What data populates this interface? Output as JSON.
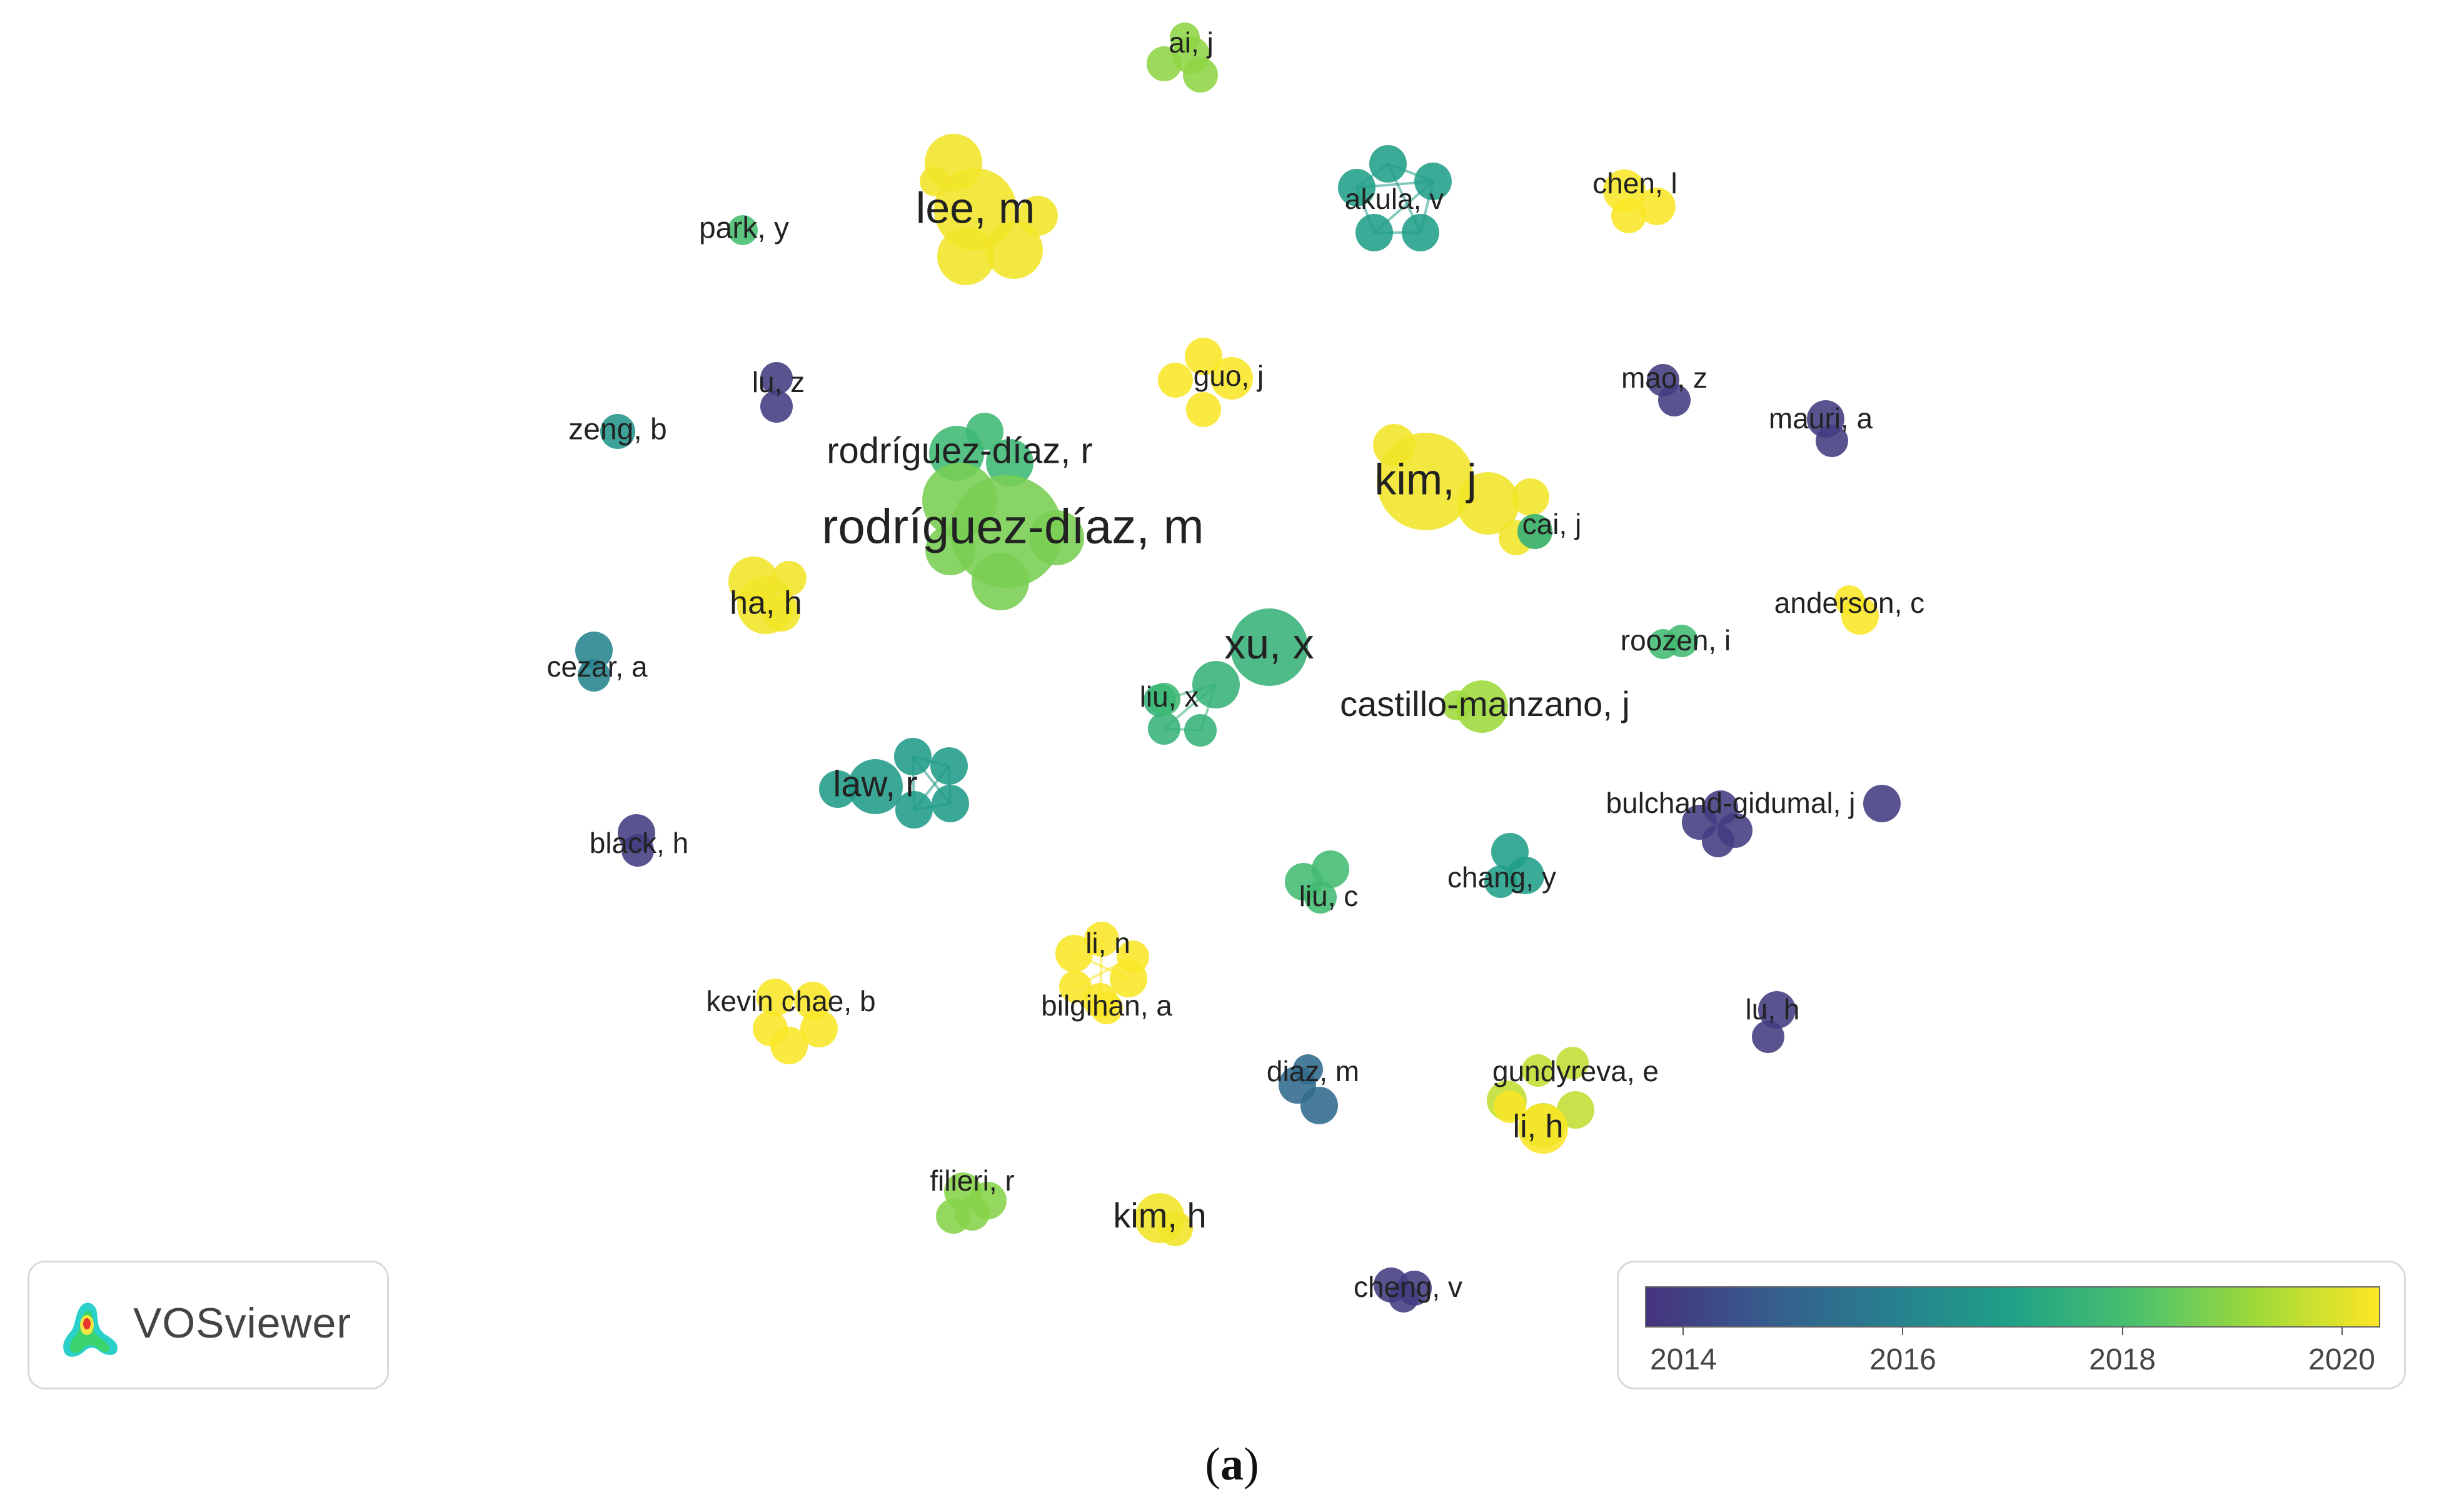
{
  "caption": {
    "open": "(",
    "letter": "a",
    "close": ")"
  },
  "logo": {
    "name": "VOSviewer",
    "icon": "vosviewer-logo-icon"
  },
  "legend": {
    "ticks": [
      "2014",
      "2016",
      "2018",
      "2020"
    ],
    "tick_values": [
      2014,
      2016,
      2018,
      2020
    ],
    "range": [
      2013.65,
      2020.35
    ],
    "colors": [
      "#46337e",
      "#365c8d",
      "#277f8e",
      "#1fa187",
      "#4ac16d",
      "#a0da39",
      "#fde725"
    ]
  },
  "nodes": [
    {
      "label": "ai, j",
      "year": 2019.0
    },
    {
      "label": "lee, m",
      "year": 2020.2
    },
    {
      "label": "akula, v",
      "year": 2016.9
    },
    {
      "label": "chen, l",
      "year": 2020.3
    },
    {
      "label": "park, y",
      "year": 2018.0
    },
    {
      "label": "guo, j",
      "year": 2020.3
    },
    {
      "label": "lu, z",
      "year": 2013.9
    },
    {
      "label": "mao, z",
      "year": 2013.9
    },
    {
      "label": "zeng, b",
      "year": 2016.6
    },
    {
      "label": "mauri, a",
      "year": 2013.9
    },
    {
      "label": "rodríguez-díaz, r",
      "year": 2017.8
    },
    {
      "label": "kim, j",
      "year": 2020.2
    },
    {
      "label": "rodríguez-díaz, m",
      "year": 2018.7
    },
    {
      "label": "cai, j",
      "year": 2017.5
    },
    {
      "label": "ha, h",
      "year": 2020.2
    },
    {
      "label": "anderson, c",
      "year": 2020.3
    },
    {
      "label": "xu, x",
      "year": 2017.6
    },
    {
      "label": "roozen, i",
      "year": 2017.9
    },
    {
      "label": "cezar, a",
      "year": 2016.0
    },
    {
      "label": "liu, x",
      "year": 2017.8
    },
    {
      "label": "castillo-manzano, j",
      "year": 2019.2
    },
    {
      "label": "law, r",
      "year": 2016.8
    },
    {
      "label": "bulchand-gidumal, j",
      "year": 2013.9
    },
    {
      "label": "black, h",
      "year": 2013.9
    },
    {
      "label": "chang, y",
      "year": 2016.9
    },
    {
      "label": "liu, c",
      "year": 2017.9
    },
    {
      "label": "li, n",
      "year": 2020.3
    },
    {
      "label": "kevin chae, b",
      "year": 2020.3
    },
    {
      "label": "bilgihan, a",
      "year": 2020.3
    },
    {
      "label": "lu, h",
      "year": 2013.9
    },
    {
      "label": "diaz, m",
      "year": 2015.2
    },
    {
      "label": "gundyreva, e",
      "year": 2019.6
    },
    {
      "label": "li, h",
      "year": 2020.3
    },
    {
      "label": "filieri, r",
      "year": 2018.9
    },
    {
      "label": "kim, h",
      "year": 2020.2
    },
    {
      "label": "cheng, v",
      "year": 2013.9
    }
  ]
}
